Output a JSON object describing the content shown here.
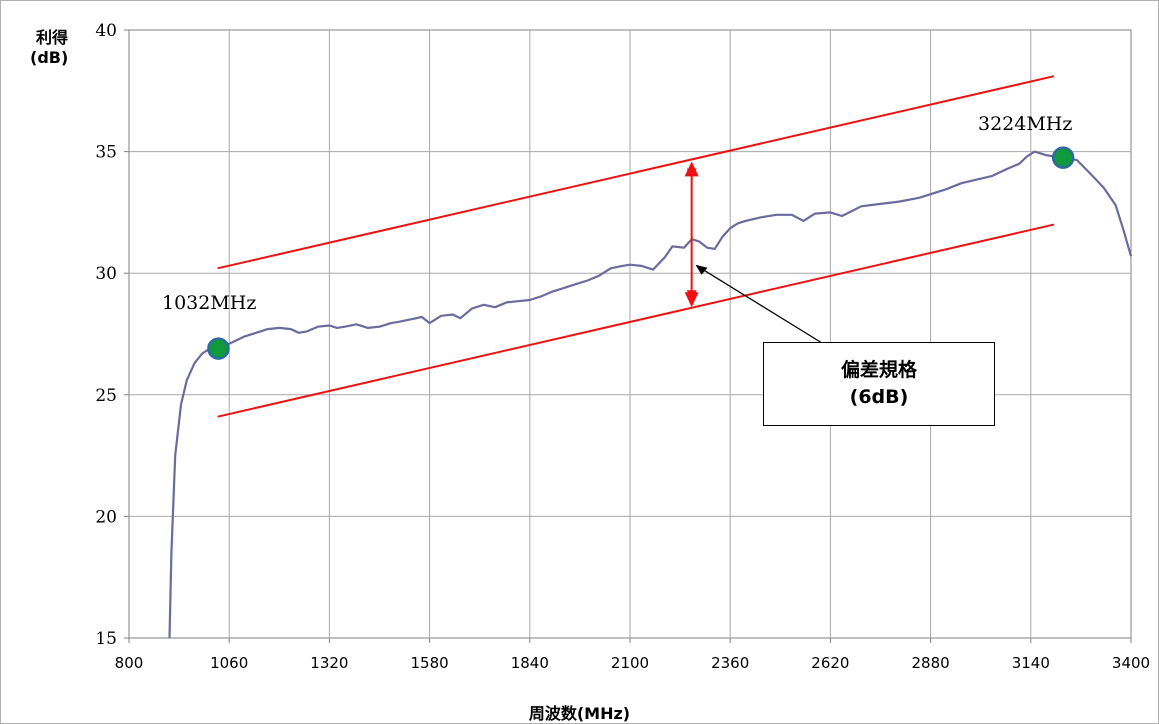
{
  "chart_data": {
    "type": "line",
    "title": "",
    "ylabel_lines": [
      "利得",
      "(dB)"
    ],
    "xlabel": "周波数(MHz)",
    "xlim": [
      800,
      3400
    ],
    "ylim": [
      15,
      40
    ],
    "xticks": [
      800,
      1060,
      1320,
      1580,
      1840,
      2100,
      2360,
      2620,
      2880,
      3140,
      3400
    ],
    "yticks": [
      15,
      20,
      25,
      30,
      35,
      40
    ],
    "grid": true,
    "colors": {
      "series": "#6b6b9e",
      "spec": "#ee1111",
      "marker_fill": "#109a3c",
      "marker_edge": "#2d6aa0"
    },
    "series": [
      {
        "x": [
          905,
          910,
          920,
          935,
          950,
          970,
          990,
          1010,
          1032,
          1060,
          1080,
          1100,
          1130,
          1160,
          1190,
          1220,
          1240,
          1260,
          1290,
          1320,
          1340,
          1360,
          1390,
          1420,
          1450,
          1480,
          1500,
          1530,
          1560,
          1580,
          1610,
          1640,
          1660,
          1690,
          1720,
          1750,
          1780,
          1810,
          1840,
          1870,
          1900,
          1930,
          1960,
          1990,
          2020,
          2050,
          2080,
          2100,
          2130,
          2160,
          2190,
          2210,
          2240,
          2260,
          2280,
          2300,
          2320,
          2340,
          2360,
          2380,
          2400,
          2440,
          2480,
          2520,
          2550,
          2580,
          2620,
          2650,
          2700,
          2750,
          2800,
          2850,
          2880,
          2920,
          2960,
          3000,
          3040,
          3080,
          3110,
          3130,
          3150,
          3180,
          3200,
          3224,
          3260,
          3300,
          3330,
          3360,
          3380,
          3400
        ],
        "y": [
          15.0,
          18.5,
          22.5,
          24.6,
          25.6,
          26.3,
          26.7,
          26.9,
          26.9,
          27.1,
          27.25,
          27.4,
          27.55,
          27.7,
          27.75,
          27.7,
          27.55,
          27.6,
          27.8,
          27.85,
          27.75,
          27.8,
          27.9,
          27.75,
          27.8,
          27.95,
          28.0,
          28.1,
          28.2,
          27.95,
          28.25,
          28.3,
          28.15,
          28.55,
          28.7,
          28.6,
          28.8,
          28.85,
          28.9,
          29.05,
          29.25,
          29.4,
          29.55,
          29.7,
          29.9,
          30.2,
          30.3,
          30.35,
          30.3,
          30.15,
          30.65,
          31.1,
          31.05,
          31.4,
          31.3,
          31.05,
          31.0,
          31.5,
          31.85,
          32.05,
          32.15,
          32.3,
          32.4,
          32.4,
          32.15,
          32.45,
          32.5,
          32.35,
          32.75,
          32.85,
          32.95,
          33.1,
          33.25,
          33.45,
          33.7,
          33.85,
          34.0,
          34.3,
          34.5,
          34.8,
          35.0,
          34.85,
          34.8,
          34.75,
          34.65,
          34.0,
          33.5,
          32.8,
          31.8,
          30.7
        ]
      }
    ],
    "spec_lines": [
      {
        "name": "upper",
        "x": [
          1030,
          3200
        ],
        "y": [
          30.2,
          38.1
        ]
      },
      {
        "name": "lower",
        "x": [
          1030,
          3200
        ],
        "y": [
          24.1,
          32.0
        ]
      }
    ],
    "markers": [
      {
        "x": 1032,
        "y": 26.9,
        "label": "1032MHz"
      },
      {
        "x": 3224,
        "y": 34.75,
        "label": "3224MHz"
      }
    ],
    "deviation_arrow": {
      "x": 2260,
      "y_top": 34.6,
      "y_bottom": 28.6
    },
    "callout": {
      "line1": "偏差規格",
      "line2": "(6dB)",
      "points_to": {
        "x": 2270,
        "y": 30.35
      }
    }
  }
}
